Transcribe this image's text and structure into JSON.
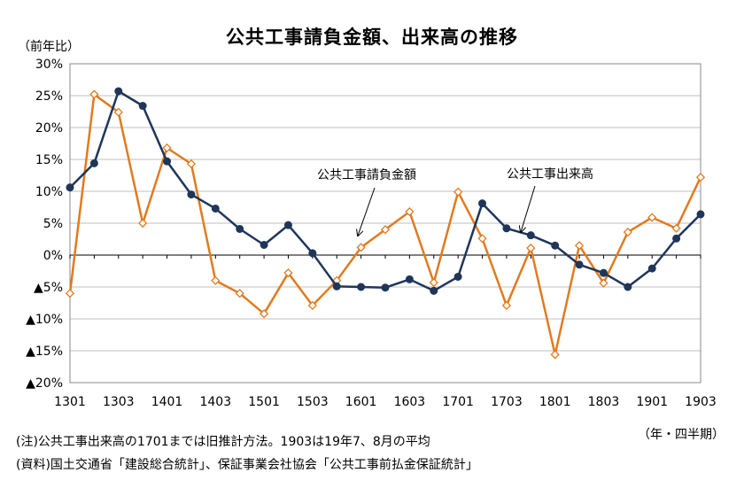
{
  "chart_data": {
    "type": "line",
    "title": "公共工事請負金額、出来高の推移",
    "ylabel": "（前年比）",
    "xlabel": "（年・四半期）",
    "ylim": [
      -20,
      30
    ],
    "yticks": [
      30,
      25,
      20,
      15,
      10,
      5,
      0,
      -5,
      -10,
      -15,
      -20
    ],
    "ytick_labels": [
      "30%",
      "25%",
      "20%",
      "15%",
      "10%",
      "5%",
      "0%",
      "▲5%",
      "▲10%",
      "▲15%",
      "▲20%"
    ],
    "x": [
      "1301",
      "1302",
      "1303",
      "1304",
      "1401",
      "1402",
      "1403",
      "1404",
      "1501",
      "1502",
      "1503",
      "1504",
      "1601",
      "1602",
      "1603",
      "1604",
      "1701",
      "1702",
      "1703",
      "1704",
      "1801",
      "1802",
      "1803",
      "1804",
      "1901",
      "1902",
      "1903"
    ],
    "xtick_labels": [
      "1301",
      "1303",
      "1401",
      "1403",
      "1501",
      "1503",
      "1601",
      "1603",
      "1701",
      "1703",
      "1801",
      "1803",
      "1901",
      "1903"
    ],
    "grid": true,
    "series": [
      {
        "name": "公共工事請負金額",
        "color": "#E07B20",
        "marker": "diamond-open",
        "values": [
          -6.0,
          25.2,
          22.4,
          5.0,
          16.8,
          14.3,
          -4.0,
          -6.0,
          -9.2,
          -2.8,
          -7.9,
          -4.0,
          1.2,
          4.0,
          6.8,
          -4.3,
          9.9,
          2.6,
          -7.9,
          1.1,
          -15.6,
          1.5,
          -4.4,
          3.6,
          5.9,
          4.2,
          12.2
        ]
      },
      {
        "name": "公共工事出来高",
        "color": "#1F3659",
        "marker": "circle-filled",
        "values": [
          10.6,
          14.4,
          25.7,
          23.4,
          14.7,
          9.5,
          7.3,
          4.1,
          1.6,
          4.7,
          0.3,
          -4.9,
          -5.0,
          -5.1,
          -3.8,
          -5.6,
          -3.4,
          8.1,
          4.2,
          3.1,
          1.5,
          -1.5,
          -2.8,
          -5.0,
          -2.1,
          2.6,
          6.4
        ]
      }
    ],
    "annotations": [
      "公共工事請負金額",
      "公共工事出来高"
    ]
  },
  "notes": {
    "note1": "(注)公共工事出来高の1701までは旧推計方法。1903は19年7、8月の平均",
    "note2": "(資料)国土交通省「建設総合統計」、保証事業会社協会「公共工事前払金保証統計」"
  }
}
